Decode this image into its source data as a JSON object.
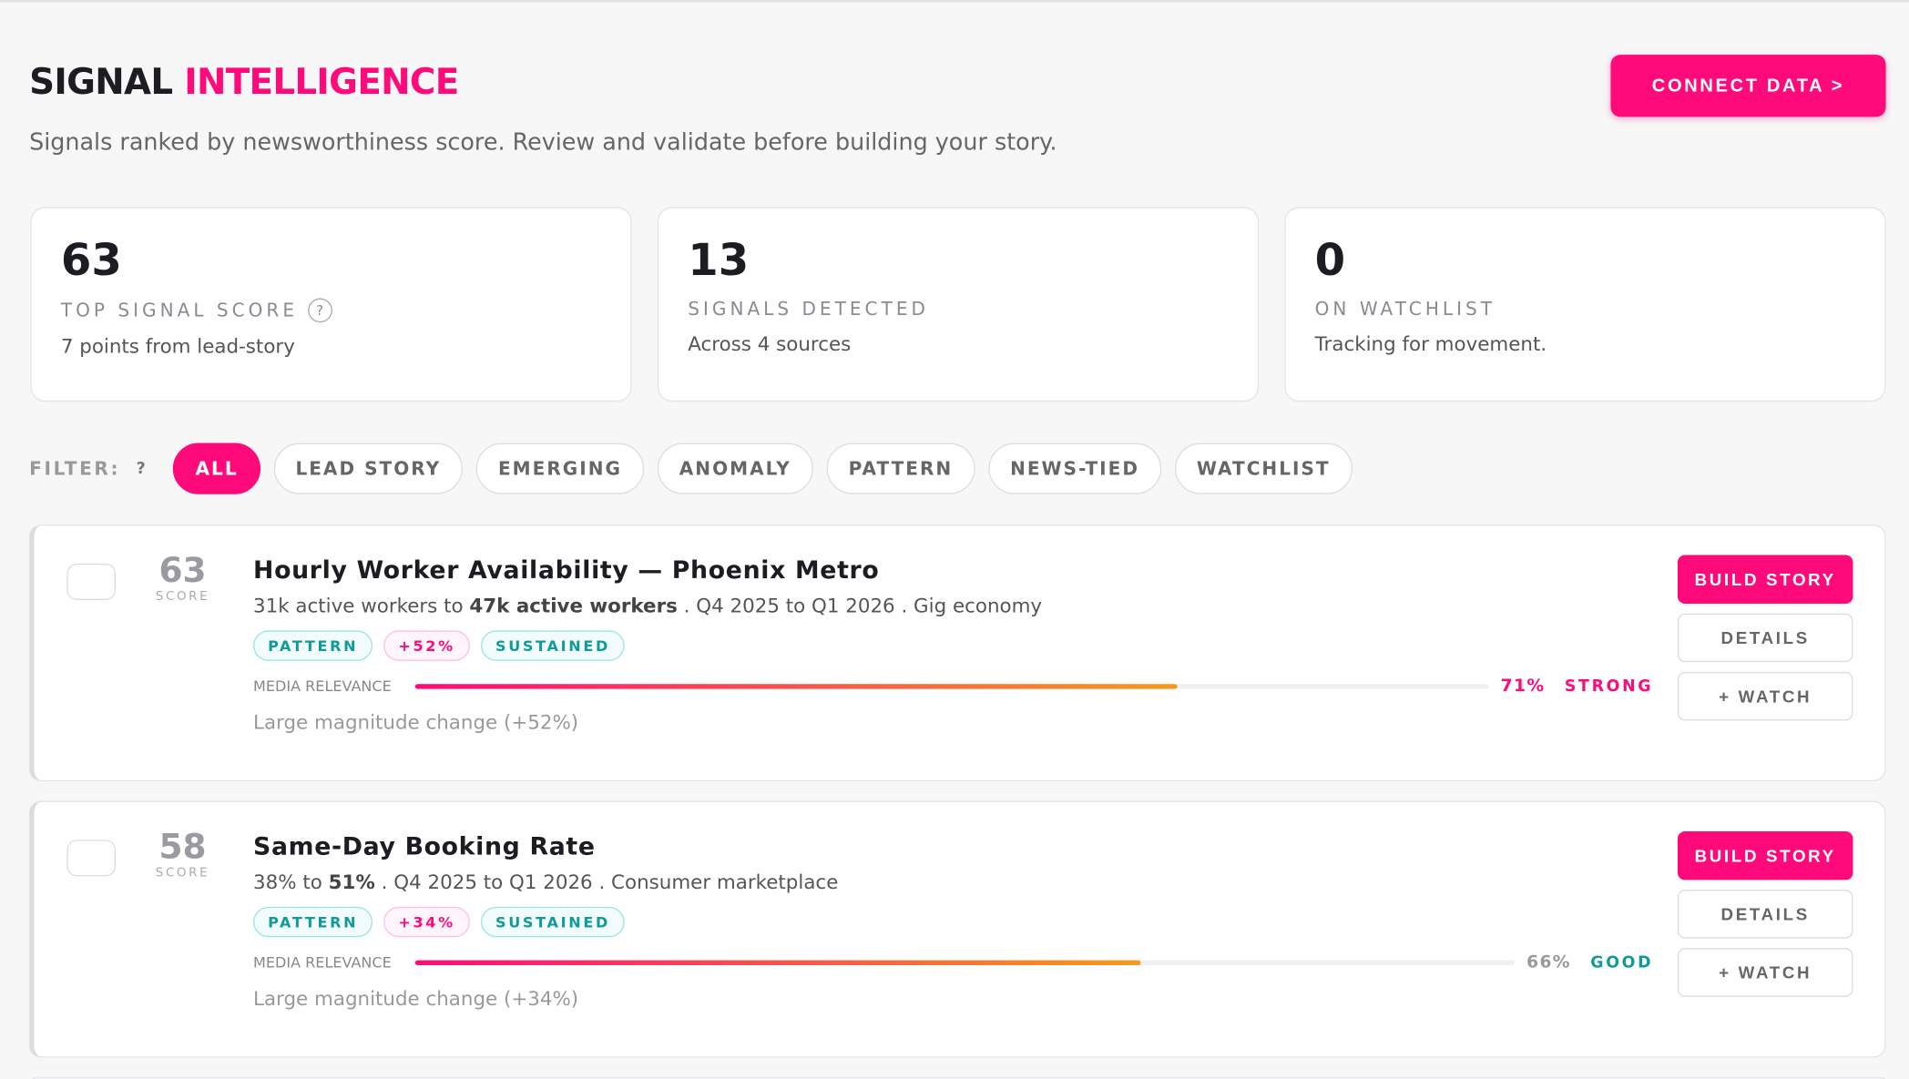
{
  "header": {
    "title_a": "SIGNAL",
    "title_b": "INTELLIGENCE",
    "subtitle": "Signals ranked by newsworthiness score. Review and validate before building your story.",
    "button": "CONNECT DATA >"
  },
  "stats": [
    {
      "value": "63",
      "label": "TOP SIGNAL SCORE",
      "help": "?",
      "sub": "7 points from lead-story"
    },
    {
      "value": "13",
      "label": "SIGNALS DETECTED",
      "sub": "Across 4 sources"
    },
    {
      "value": "0",
      "label": "ON WATCHLIST",
      "sub": "Tracking for movement."
    }
  ],
  "filter": {
    "label": "FILTER:",
    "help": "?",
    "chips": [
      "ALL",
      "LEAD STORY",
      "EMERGING",
      "ANOMALY",
      "PATTERN",
      "NEWS-TIED",
      "WATCHLIST"
    ]
  },
  "signals": [
    {
      "score": "63",
      "score_label": "SCORE",
      "title": "Hourly Worker Availability — Phoenix Metro",
      "from": "31k active workers",
      "to": "to",
      "target": "47k active workers",
      "rest": ". Q4 2025 to Q1 2026 . Gig economy",
      "tags": [
        "PATTERN",
        "+52%",
        "SUSTAINED"
      ],
      "relevance_label": "MEDIA RELEVANCE",
      "relevance": {
        "value": 71,
        "label": "71%"
      },
      "strength": "STRONG",
      "reason": "Large magnitude change (+52%)",
      "buttons": [
        "BUILD STORY",
        "DETAILS",
        "+ WATCH"
      ]
    },
    {
      "score": "58",
      "score_label": "SCORE",
      "title": "Same-Day Booking Rate",
      "from": "38%",
      "to": "to",
      "target": "51%",
      "rest": ". Q4 2025 to Q1 2026 . Consumer marketplace",
      "tags": [
        "PATTERN",
        "+34%",
        "SUSTAINED"
      ],
      "relevance_label": "MEDIA RELEVANCE",
      "relevance": {
        "value": 66,
        "label": "66%"
      },
      "strength": "GOOD",
      "reason": "Large magnitude change (+34%)",
      "buttons": [
        "BUILD STORY",
        "DETAILS",
        "+ WATCH"
      ]
    }
  ]
}
